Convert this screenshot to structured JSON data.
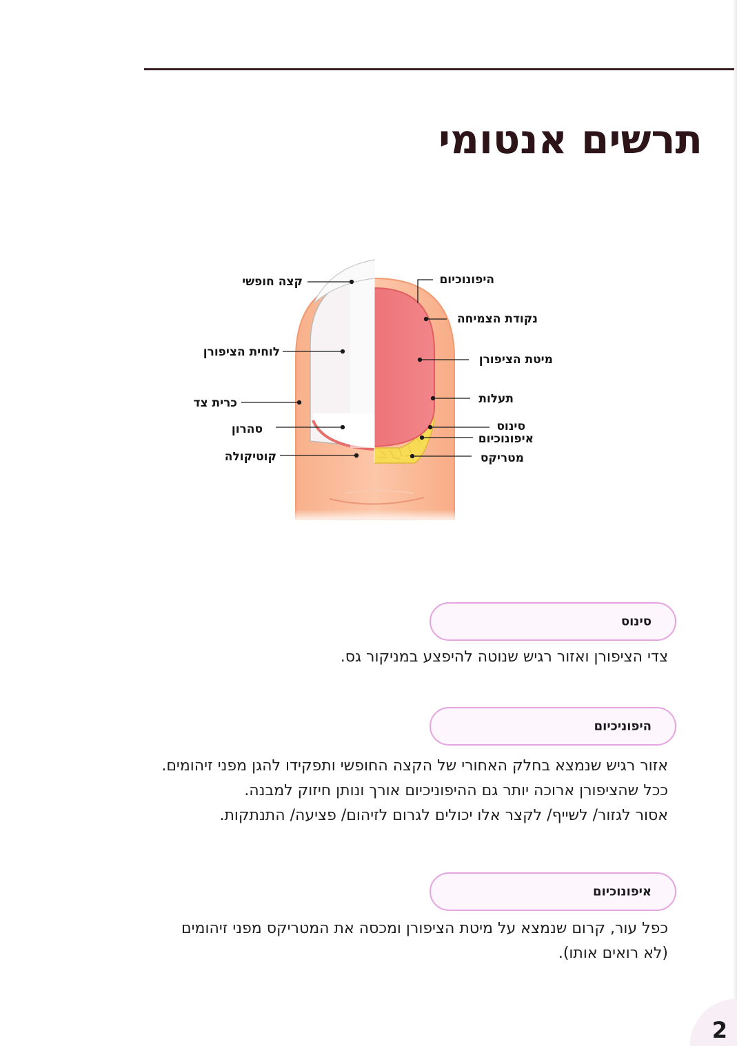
{
  "page": {
    "title": "תרשים אנטומי",
    "number": "2"
  },
  "diagram": {
    "labels": {
      "free_edge": "קצה חופשי",
      "nail_plate": "לוחית הציפורן",
      "lateral_fold": "כרית צד",
      "lunula": "סהרון",
      "cuticle": "קוטיקולה",
      "hyponychium": "היפונוכיום",
      "growth_point": "נקודת הצמיחה",
      "nail_bed": "מיטת הציפורן",
      "groove": "תעלות",
      "sinus": "סינוס",
      "eponychium": "איפונוכיום",
      "matrix": "מטריקס"
    },
    "colors": {
      "skin": "#f9b996",
      "skin_outline": "#f0956b",
      "nail_bed": "#ef7a7e",
      "nail_plate": "#f6f1f2",
      "matrix": "#f7db55",
      "leader_line": "#1a1a1a"
    }
  },
  "sections": [
    {
      "heading": "סינוס",
      "lines": [
        "צדי הציפורן ואזור רגיש שנוטה להיפצע במניקור גס."
      ]
    },
    {
      "heading": "היפוניכיום",
      "lines": [
        "אזור רגיש שנמצא בחלק האחורי של הקצה החופשי ותפקידו להגן מפני זיהומים.",
        "ככל שהציפורן ארוכה יותר גם ההיפוניכיום אורך ונותן חיזוק למבנה.",
        "אסור לגזור/ לשייף/ לקצר אלו יכולים לגרום לזיהום/ פציעה/ התנתקות."
      ]
    },
    {
      "heading": "איפונוכיום",
      "lines": [
        "כפל עור, קרום שנמצא על מיטת הציפורן ומכסה את המטריקס מפני זיהומים",
        "(לא רואים אותו)."
      ]
    }
  ],
  "accent_color": "#e6a4e0",
  "title_color": "#2d1418"
}
